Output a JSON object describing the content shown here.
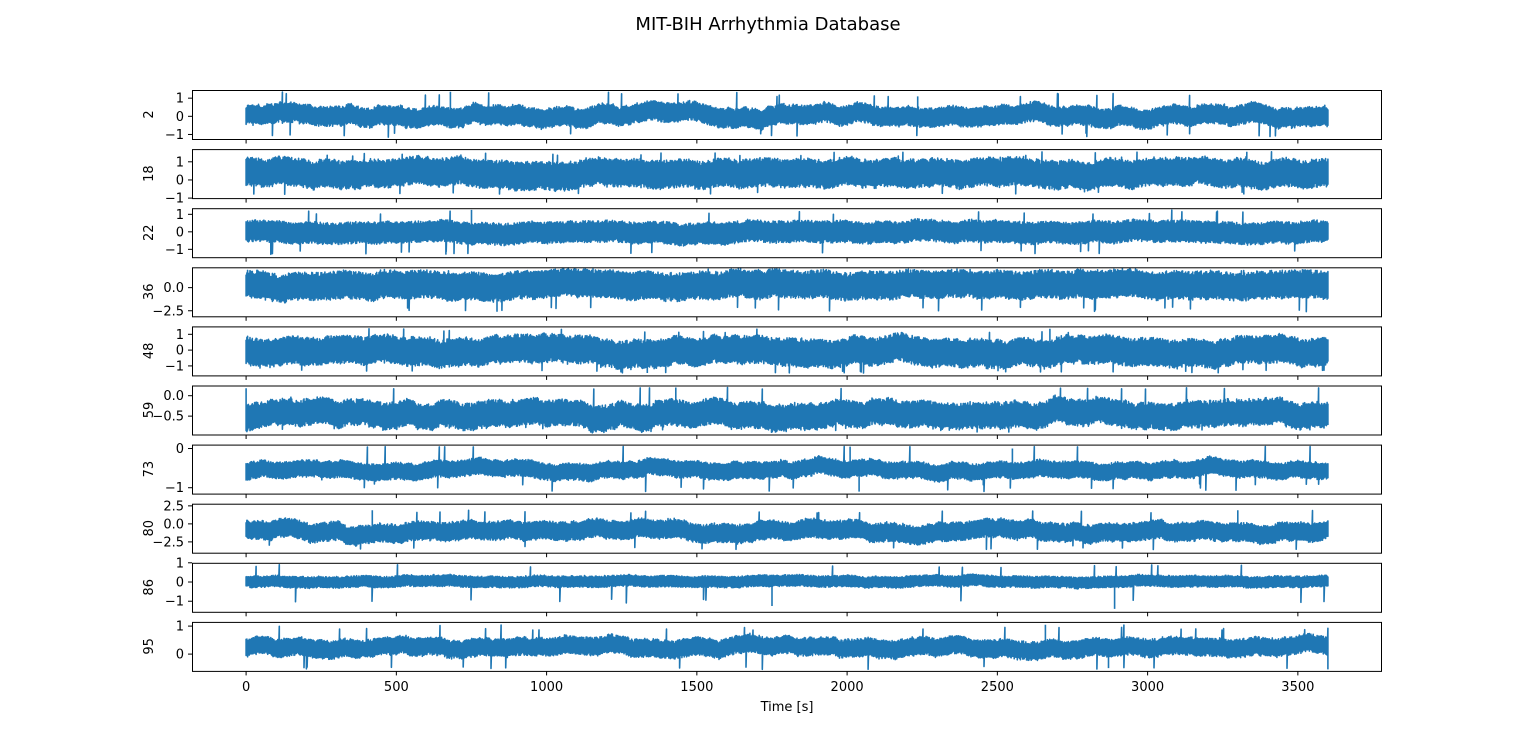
{
  "chart_data": {
    "type": "line",
    "title": "MIT-BIH Arrhythmia Database",
    "xlabel": "Time [s]",
    "xlim": [
      -180,
      3780
    ],
    "xticks": [
      0,
      500,
      1000,
      1500,
      2000,
      2500,
      3000,
      3500
    ],
    "xticklabels": [
      "0",
      "500",
      "1000",
      "1500",
      "2000",
      "2500",
      "3000",
      "3500"
    ],
    "line_color": "#1f77b4",
    "grid": false,
    "subplots": [
      {
        "ylabel": "2",
        "ylim": [
          -1.25,
          1.45
        ],
        "yticks": [
          -1,
          0,
          1
        ],
        "yticklabels": [
          "−1",
          "0",
          "1"
        ],
        "band": [
          -0.45,
          0.55
        ],
        "amp": 0.55,
        "spike_up": 1.35,
        "spike_down": -1.15,
        "events": [
          [
            680,
            1.35
          ],
          [
            2235,
            1.1
          ]
        ]
      },
      {
        "ylabel": "18",
        "ylim": [
          -1.0,
          1.7
        ],
        "yticks": [
          -1,
          0,
          1
        ],
        "yticklabels": [
          "−1",
          "0",
          "1"
        ],
        "band": [
          -0.35,
          1.1
        ],
        "amp": 0.35,
        "spike_up": 1.55,
        "spike_down": -0.8,
        "events": [
          [
            3320,
            -0.8
          ],
          [
            3330,
            1.55
          ]
        ]
      },
      {
        "ylabel": "22",
        "ylim": [
          -1.45,
          1.35
        ],
        "yticks": [
          -1,
          0,
          1
        ],
        "yticklabels": [
          "−1",
          "0",
          "1"
        ],
        "band": [
          -0.6,
          0.55
        ],
        "amp": 0.25,
        "spike_up": 1.25,
        "spike_down": -1.3,
        "events": [
          [
            665,
            -1.3
          ],
          [
            750,
            1.25
          ]
        ]
      },
      {
        "ylabel": "36",
        "ylim": [
          -3.1,
          2.2
        ],
        "yticks": [
          -2.5,
          0
        ],
        "yticklabels": [
          "−2.5",
          "0.0"
        ],
        "band": [
          -1.1,
          1.7
        ],
        "amp": 0.6,
        "spike_up": 2.0,
        "spike_down": -2.6,
        "events": [
          [
            835,
            -2.6
          ],
          [
            2975,
            1.6
          ]
        ]
      },
      {
        "ylabel": "48",
        "ylim": [
          -1.6,
          1.5
        ],
        "yticks": [
          -1,
          0,
          1
        ],
        "yticklabels": [
          "−1",
          "0",
          "1"
        ],
        "band": [
          -0.9,
          0.75
        ],
        "amp": 0.6,
        "spike_up": 1.35,
        "spike_down": -1.45,
        "events": [
          [
            1335,
            -1.45
          ],
          [
            2675,
            1.35
          ]
        ]
      },
      {
        "ylabel": "59",
        "ylim": [
          -0.95,
          0.25
        ],
        "yticks": [
          -0.5,
          0
        ],
        "yticklabels": [
          "−0.5",
          "0.0"
        ],
        "band": [
          -0.75,
          -0.15
        ],
        "amp": 0.3,
        "spike_up": 0.2,
        "spike_down": -0.9,
        "events": [
          [
            1430,
            0.2
          ],
          [
            3540,
            -0.85
          ]
        ]
      },
      {
        "ylabel": "73",
        "ylim": [
          -1.15,
          0.1
        ],
        "yticks": [
          -1,
          0
        ],
        "yticklabels": [
          "−1",
          "0"
        ],
        "band": [
          -0.75,
          -0.35
        ],
        "amp": 0.2,
        "spike_up": 0.05,
        "spike_down": -1.1,
        "events": [
          [
            2010,
            0.05
          ],
          [
            2040,
            -1.1
          ],
          [
            2550,
            0.0
          ]
        ]
      },
      {
        "ylabel": "80",
        "ylim": [
          -4.0,
          2.8
        ],
        "yticks": [
          -2.5,
          0,
          2.5
        ],
        "yticklabels": [
          "−2.5",
          "0.0",
          "2.5"
        ],
        "band": [
          -2.2,
          0.2
        ],
        "amp": 1.2,
        "spike_up": 1.9,
        "spike_down": -3.6,
        "events": [
          [
            420,
            1.9
          ],
          [
            3300,
            1.9
          ]
        ]
      },
      {
        "ylabel": "86",
        "ylim": [
          -1.55,
          1.0
        ],
        "yticks": [
          -1,
          0,
          1
        ],
        "yticklabels": [
          "−1",
          "0",
          "1"
        ],
        "band": [
          -0.25,
          0.3
        ],
        "amp": 0.15,
        "spike_up": 0.9,
        "spike_down": -1.1,
        "events": [
          [
            1750,
            -1.25
          ],
          [
            2890,
            -1.4
          ]
        ]
      },
      {
        "ylabel": "95",
        "ylim": [
          -0.6,
          1.15
        ],
        "yticks": [
          0,
          1
        ],
        "yticklabels": [
          "0",
          "1"
        ],
        "band": [
          -0.05,
          0.55
        ],
        "amp": 0.3,
        "spike_up": 1.05,
        "spike_down": -0.55,
        "events": [
          [
            2660,
            1.05
          ],
          [
            2870,
            -0.5
          ]
        ]
      }
    ],
    "x_data_end": 3600
  }
}
